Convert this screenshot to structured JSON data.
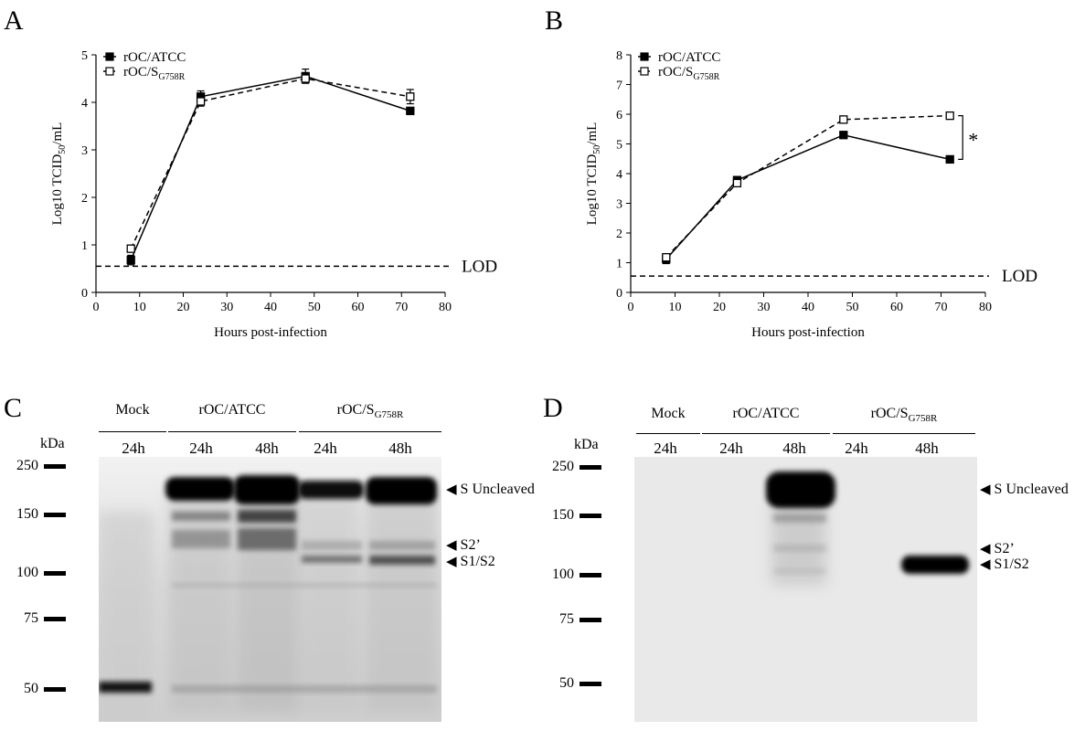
{
  "panel_letters": {
    "a": "A",
    "b": "B",
    "c": "C",
    "d": "D"
  },
  "chart_data": [
    {
      "type": "line",
      "panel": "A",
      "xlabel": "Hours post-infection",
      "ylabel": "Log10 TCID",
      "ylabel_sub": "50",
      "ylabel_suffix": "/mL",
      "xlim": [
        0,
        80
      ],
      "ylim": [
        0,
        5
      ],
      "xticks": [
        0,
        10,
        20,
        30,
        40,
        50,
        60,
        70,
        80
      ],
      "yticks": [
        0,
        1,
        2,
        3,
        4,
        5
      ],
      "x": [
        8,
        24,
        48,
        72
      ],
      "series": [
        {
          "name": "rOC/ATCC",
          "name_sub": "",
          "style": "solid",
          "marker": "filled-square",
          "values": [
            0.68,
            4.12,
            4.55,
            3.82
          ],
          "errors": [
            0.1,
            0.12,
            0.15,
            0.05
          ]
        },
        {
          "name": "rOC/S",
          "name_sub": "G758R",
          "style": "dashed",
          "marker": "open-square",
          "values": [
            0.92,
            4.02,
            4.5,
            4.12
          ],
          "errors": [
            0.06,
            0.1,
            0.08,
            0.15
          ]
        }
      ],
      "reference_line": {
        "y": 0.55,
        "label": "LOD",
        "style": "dashed"
      },
      "legend": "top-left",
      "grid": false
    },
    {
      "type": "line",
      "panel": "B",
      "xlabel": "Hours post-infection",
      "ylabel": "Log10 TCID",
      "ylabel_sub": "50",
      "ylabel_suffix": "/mL",
      "xlim": [
        0,
        80
      ],
      "ylim": [
        0,
        8
      ],
      "xticks": [
        0,
        10,
        20,
        30,
        40,
        50,
        60,
        70,
        80
      ],
      "yticks": [
        0,
        1,
        2,
        3,
        4,
        5,
        6,
        7,
        8
      ],
      "x": [
        8,
        24,
        48,
        72
      ],
      "series": [
        {
          "name": "rOC/ATCC",
          "name_sub": "",
          "style": "solid",
          "marker": "filled-square",
          "values": [
            1.12,
            3.78,
            5.3,
            4.48
          ],
          "errors": [
            0.15,
            0.1,
            0.1,
            0.05
          ]
        },
        {
          "name": "rOC/S",
          "name_sub": "G758R",
          "style": "dashed",
          "marker": "open-square",
          "values": [
            1.18,
            3.68,
            5.82,
            5.95
          ],
          "errors": [
            0.08,
            0.08,
            0.05,
            0.05
          ]
        }
      ],
      "reference_line": {
        "y": 0.55,
        "label": "LOD",
        "style": "dashed"
      },
      "significance": {
        "x": 72,
        "label": "*"
      },
      "legend": "top-left",
      "grid": false
    }
  ],
  "blots": [
    {
      "panel": "C",
      "groups": [
        {
          "label": "Mock",
          "sub": ""
        },
        {
          "label": "rOC/ATCC",
          "sub": ""
        },
        {
          "label": "rOC/S",
          "sub": "G758R"
        }
      ],
      "times": [
        "24h",
        "24h",
        "48h",
        "24h",
        "48h"
      ],
      "kda_label": "kDa",
      "markers": [
        "250",
        "150",
        "100",
        "75",
        "50"
      ],
      "bands": [
        "S Uncleaved",
        "S2’",
        "S1/S2"
      ]
    },
    {
      "panel": "D",
      "groups": [
        {
          "label": "Mock",
          "sub": ""
        },
        {
          "label": "rOC/ATCC",
          "sub": ""
        },
        {
          "label": "rOC/S",
          "sub": "G758R"
        }
      ],
      "times": [
        "24h",
        "24h",
        "48h",
        "24h",
        "48h"
      ],
      "kda_label": "kDa",
      "markers": [
        "250",
        "150",
        "100",
        "75",
        "50"
      ],
      "bands": [
        "S Uncleaved",
        "S2’",
        "S1/S2"
      ]
    }
  ]
}
